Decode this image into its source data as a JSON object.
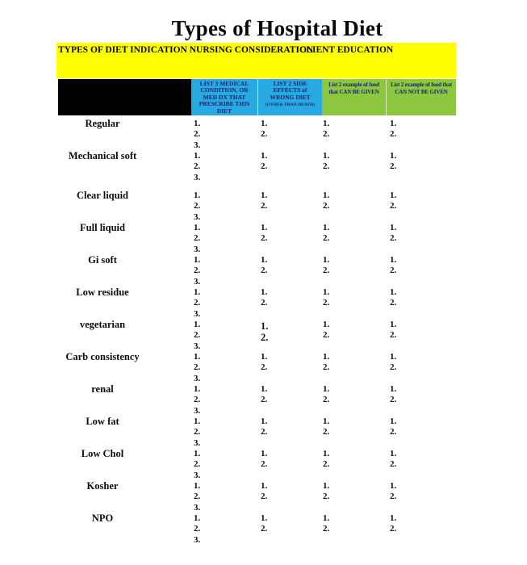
{
  "page": {
    "title": "Types of Hospital Diet"
  },
  "category_bar": {
    "left_label": "TYPES OF DIET INDICATION NURSING CONSIDERATION",
    "right_label": "CLIENT EDUCATION"
  },
  "table": {
    "header": {
      "diet_column_label": "",
      "list3_label": "LIST 3 MEDICAL CONDITION, OR MED DX THAT PRESCRIBE THIS DIET",
      "side_effects_label": "LIST 2 SIDE EFFECTS of WRONG DIET",
      "side_effects_sub_label": "(OTHER THAN DEATH)",
      "can_given_label": "List 2 example of food that CAN BE GIVEN",
      "cannot_given_label": "List 2 example of food that CAN NOT BE GIVEN"
    },
    "rows": [
      {
        "diet": "Regular",
        "cols": [
          [
            "1.",
            "2.",
            "3."
          ],
          [
            "1.",
            "2."
          ],
          [
            "1.",
            "2."
          ],
          [
            "1.",
            "2."
          ]
        ],
        "spacer_before": false,
        "col2_emphasis": false
      },
      {
        "diet": "Mechanical soft",
        "cols": [
          [
            "1.",
            "2.",
            "3."
          ],
          [
            "1.",
            "2."
          ],
          [
            "1.",
            "2."
          ],
          [
            "1.",
            "2."
          ]
        ],
        "spacer_before": false,
        "col2_emphasis": false
      },
      {
        "diet": "Clear liquid",
        "cols": [
          [
            "1.",
            "2.",
            "3."
          ],
          [
            "1.",
            "2."
          ],
          [
            "1.",
            "2."
          ],
          [
            "1.",
            "2."
          ]
        ],
        "spacer_before": true,
        "col2_emphasis": false
      },
      {
        "diet": "Full liquid",
        "cols": [
          [
            "1.",
            "2.",
            "3."
          ],
          [
            "1.",
            "2."
          ],
          [
            "1.",
            "2."
          ],
          [
            "1.",
            "2."
          ]
        ],
        "spacer_before": false,
        "col2_emphasis": false
      },
      {
        "diet": "Gi soft",
        "cols": [
          [
            "1.",
            "2.",
            "3."
          ],
          [
            "1.",
            "2."
          ],
          [
            "1.",
            "2."
          ],
          [
            "1.",
            "2."
          ]
        ],
        "spacer_before": false,
        "col2_emphasis": false
      },
      {
        "diet": "Low residue",
        "cols": [
          [
            "1.",
            "2.",
            "3."
          ],
          [
            "1.",
            "2."
          ],
          [
            "1.",
            "2."
          ],
          [
            "1.",
            "2."
          ]
        ],
        "spacer_before": false,
        "col2_emphasis": false
      },
      {
        "diet": "vegetarian",
        "cols": [
          [
            "1.",
            "2.",
            "3."
          ],
          [
            "1.",
            "2."
          ],
          [
            "1.",
            "2."
          ],
          [
            "1.",
            "2."
          ]
        ],
        "spacer_before": false,
        "col2_emphasis": true
      },
      {
        "diet": "Carb consistency",
        "cols": [
          [
            "1.",
            "2.",
            "3."
          ],
          [
            "1.",
            "2."
          ],
          [
            "1.",
            "2."
          ],
          [
            "1.",
            "2."
          ]
        ],
        "spacer_before": false,
        "col2_emphasis": false
      },
      {
        "diet": "renal",
        "cols": [
          [
            "1.",
            "2.",
            "3."
          ],
          [
            "1.",
            "2."
          ],
          [
            "1.",
            "2."
          ],
          [
            "1.",
            "2."
          ]
        ],
        "spacer_before": false,
        "col2_emphasis": false
      },
      {
        "diet": "Low fat",
        "cols": [
          [
            "1.",
            "2.",
            "3."
          ],
          [
            "1.",
            "2."
          ],
          [
            "1.",
            "2."
          ],
          [
            "1.",
            "2."
          ]
        ],
        "spacer_before": false,
        "col2_emphasis": false
      },
      {
        "diet": "Low Chol",
        "cols": [
          [
            "1.",
            "2.",
            "3."
          ],
          [
            "1.",
            "2."
          ],
          [
            "1.",
            "2."
          ],
          [
            "1.",
            "2."
          ]
        ],
        "spacer_before": false,
        "col2_emphasis": false
      },
      {
        "diet": "Kosher",
        "cols": [
          [
            "1.",
            "2.",
            "3."
          ],
          [
            "1.",
            "2."
          ],
          [
            "1.",
            "2."
          ],
          [
            "1.",
            "2."
          ]
        ],
        "spacer_before": false,
        "col2_emphasis": false
      },
      {
        "diet": "NPO",
        "cols": [
          [
            "1.",
            "2.",
            "3."
          ],
          [
            "1.",
            "2."
          ],
          [
            "1.",
            "2."
          ],
          [
            "1.",
            "2."
          ]
        ],
        "spacer_before": false,
        "col2_emphasis": false
      }
    ]
  },
  "colors": {
    "band_yellow": "#FFFF00",
    "header_blue": "#29A9E1",
    "header_green": "#8DC63F",
    "header_black": "#000000",
    "header_text_navy": "#17246B",
    "body_text": "#0D0D0D",
    "background": "#FFFFFF"
  }
}
